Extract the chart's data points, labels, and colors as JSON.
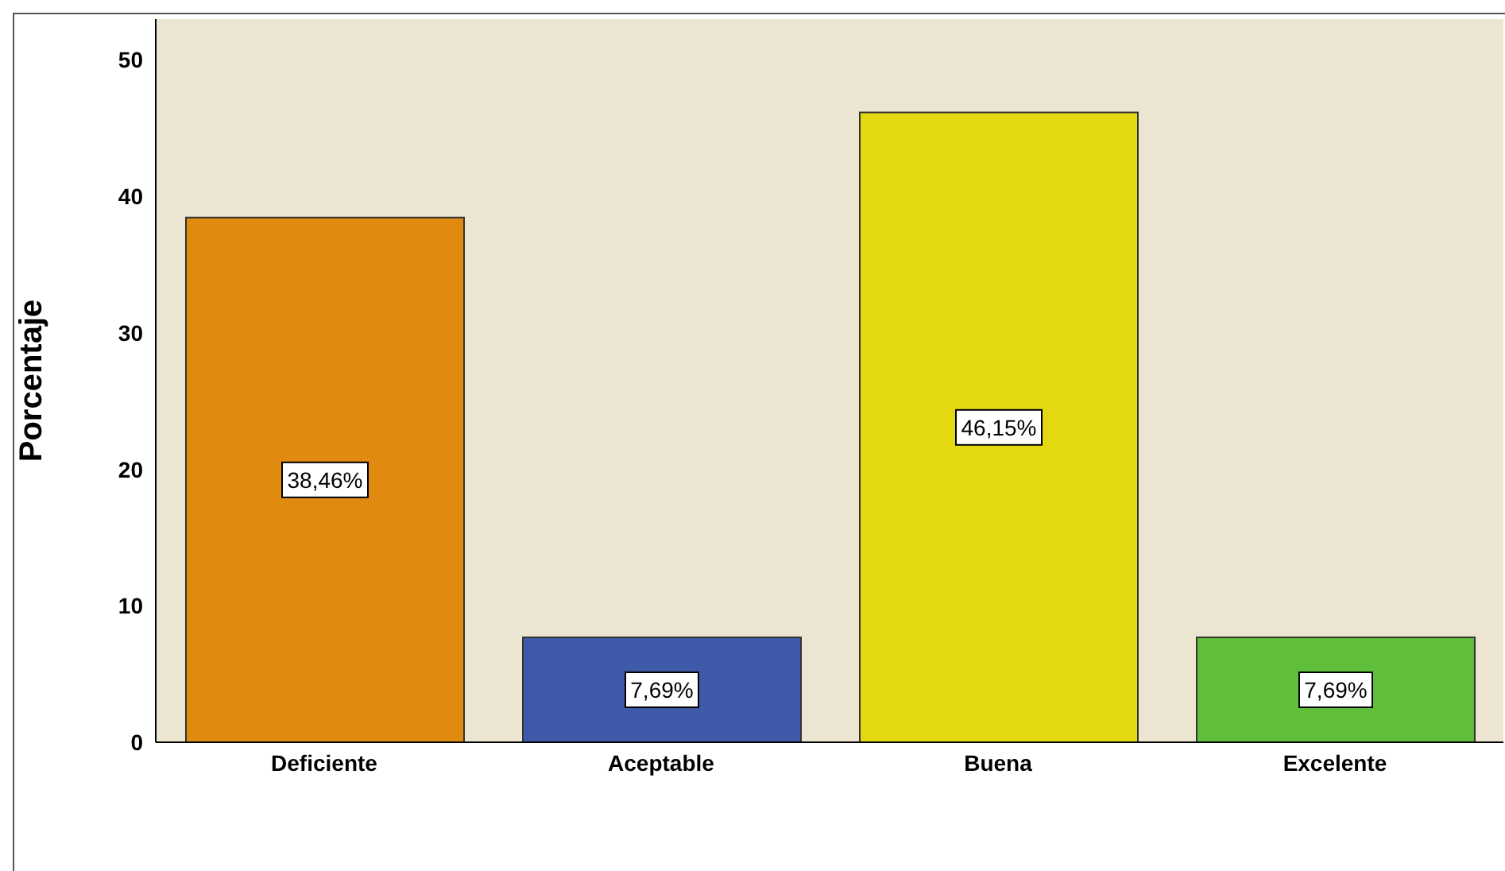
{
  "chart_data": {
    "type": "bar",
    "ylabel": "Porcentaje",
    "categories": [
      "Deficiente",
      "Aceptable",
      "Buena",
      "Excelente"
    ],
    "values": [
      38.46,
      7.69,
      46.15,
      7.69
    ],
    "colors": [
      "#e08a10",
      "#3f5aa8",
      "#e4d810",
      "#5fbf3a"
    ],
    "value_labels": [
      "38,46%",
      "7,69%",
      "46,15%",
      "7,69%"
    ],
    "ylim": [
      0,
      53
    ],
    "yticks": [
      0,
      10,
      20,
      30,
      40,
      50
    ]
  }
}
